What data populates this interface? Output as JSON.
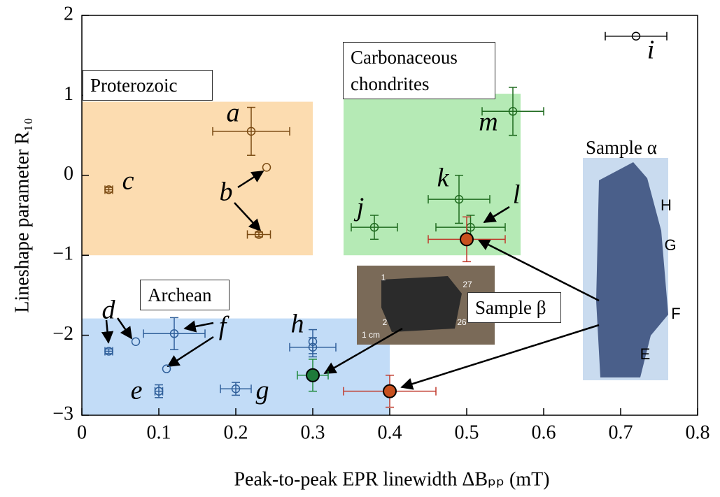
{
  "chart_data": {
    "type": "scatter",
    "xlabel": "Peak-to-peak EPR linewidth ΔBₚₚ (mT)",
    "ylabel": "Lineshape parameter R₁₀",
    "xlim": [
      0,
      0.8
    ],
    "ylim": [
      -3,
      2
    ],
    "xticks": [
      0,
      0.1,
      0.2,
      0.3,
      0.4,
      0.5,
      0.6,
      0.7,
      0.8
    ],
    "yticks": [
      {
        "value": -3,
        "label": "−3"
      },
      {
        "value": -2,
        "label": "−2"
      },
      {
        "value": -1,
        "label": "−1"
      },
      0,
      1,
      2
    ],
    "series": [
      {
        "name": "Proterozoic",
        "color": "#7a4a12",
        "fill": "none",
        "region": {
          "x": [
            0,
            0.3
          ],
          "y": [
            -1,
            0.92
          ],
          "color": "#fcdcb0"
        },
        "x": [
          0.22,
          0.24,
          0.23,
          0.035
        ],
        "values": [
          0.55,
          0.1,
          -0.74,
          -0.18
        ],
        "xerr": [
          0.05,
          null,
          0.015,
          0.005
        ],
        "yerr": [
          0.3,
          null,
          0.03,
          0.03
        ]
      },
      {
        "name": "Carbonaceous chondrites",
        "color": "#1f6b1f",
        "fill": "none",
        "region": {
          "x": [
            0.34,
            0.57
          ],
          "y": [
            -1,
            1.02
          ],
          "color": "#b5eab5"
        },
        "x": [
          0.56,
          0.49,
          0.505,
          0.38
        ],
        "values": [
          0.8,
          -0.3,
          -0.65,
          -0.65
        ],
        "xerr": [
          0.04,
          0.04,
          0.045,
          0.03
        ],
        "yerr": [
          0.3,
          0.3,
          0.15,
          0.15
        ]
      },
      {
        "name": "Archean",
        "color": "#2f5f9a",
        "fill": "none",
        "region": {
          "x": [
            0,
            0.4
          ],
          "y": [
            -3,
            -1.79
          ],
          "color": "#c2dcf7"
        },
        "x": [
          0.035,
          0.07,
          0.12,
          0.11,
          0.1,
          0.2,
          0.3,
          0.3
        ],
        "values": [
          -2.2,
          -2.08,
          -1.98,
          -2.42,
          -2.7,
          -2.67,
          -2.08,
          -2.15
        ],
        "xerr": [
          0.005,
          null,
          0.04,
          null,
          0.005,
          0.02,
          null,
          0.03
        ],
        "yerr": [
          0.03,
          null,
          0.2,
          null,
          0.08,
          0.08,
          0.15,
          0.12
        ]
      },
      {
        "color": "#000000",
        "fill": "none",
        "x": [
          0.72
        ],
        "values": [
          1.74
        ],
        "xerr": [
          0.04
        ],
        "yerr": [
          null
        ]
      },
      {
        "name": "Sample α",
        "color": "#c0392b",
        "fill": "#c8501e",
        "x": [
          0.5,
          0.4
        ],
        "values": [
          -0.8,
          -2.7
        ],
        "xerr": [
          0.05,
          0.06
        ],
        "yerr": [
          0.28,
          0.2
        ]
      },
      {
        "name": "Sample β",
        "color": "#1e8a3a",
        "fill": "#1e7a3a",
        "x": [
          0.3
        ],
        "values": [
          -2.5
        ],
        "xerr": [
          0.02
        ],
        "yerr": [
          0.2
        ]
      }
    ],
    "point_labels": [
      "a",
      "b",
      "c",
      "m",
      "k",
      "l",
      "j",
      "d",
      "f",
      "e",
      "g",
      "h",
      "i"
    ],
    "photo_labels": {
      "alpha": [
        "H",
        "G",
        "F",
        "E"
      ],
      "beta": [
        "1",
        "27",
        "2",
        "26",
        "1 cm"
      ]
    }
  }
}
